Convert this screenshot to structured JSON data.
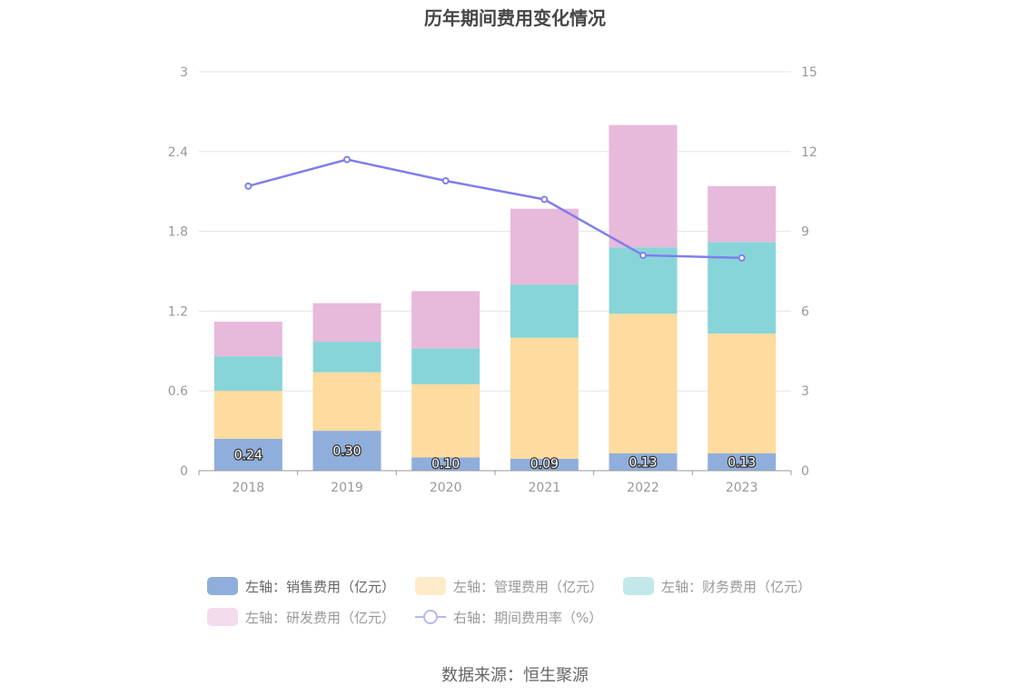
{
  "title": "历年期间费用变化情况",
  "source": "数据来源：恒生聚源",
  "colors": {
    "sales": "#8faedc",
    "admin": "#fedb9e",
    "finance": "#88d5d9",
    "rd": "#e7b9da",
    "rate": "#7f7fea",
    "grid": "#e3e3f1",
    "axis": "#999999"
  },
  "chart_data": {
    "type": "bar",
    "categories": [
      "2018",
      "2019",
      "2020",
      "2021",
      "2022",
      "2023"
    ],
    "stacked": true,
    "left_axis": {
      "ticks": [
        "0",
        "0.6",
        "1.2",
        "1.8",
        "2.4",
        "3"
      ],
      "ylim": [
        0,
        3
      ]
    },
    "right_axis": {
      "ticks": [
        "0",
        "3",
        "6",
        "9",
        "12",
        "15"
      ],
      "ylim": [
        0,
        15
      ]
    },
    "series": [
      {
        "name": "左轴：销售费用（亿元）",
        "type": "bar",
        "axis": "left",
        "color": "#8faedc",
        "values": [
          0.24,
          0.3,
          0.1,
          0.09,
          0.13,
          0.13
        ],
        "labels": [
          "0.24",
          "0.30",
          "0.10",
          "0.09",
          "0.13",
          "0.13"
        ]
      },
      {
        "name": "左轴：管理费用（亿元）",
        "type": "bar",
        "axis": "left",
        "color": "#fedb9e",
        "values": [
          0.36,
          0.44,
          0.55,
          0.91,
          1.05,
          0.9
        ]
      },
      {
        "name": "左轴：财务费用（亿元）",
        "type": "bar",
        "axis": "left",
        "color": "#88d5d9",
        "values": [
          0.26,
          0.23,
          0.27,
          0.4,
          0.5,
          0.69
        ]
      },
      {
        "name": "左轴：研发费用（亿元）",
        "type": "bar",
        "axis": "left",
        "color": "#e7b9da",
        "values": [
          0.26,
          0.29,
          0.43,
          0.57,
          0.92,
          0.42
        ]
      },
      {
        "name": "右轴：期间费用率（%）",
        "type": "line",
        "axis": "right",
        "color": "#7f7fea",
        "values": [
          10.7,
          11.7,
          10.9,
          10.2,
          8.1,
          8.0
        ]
      }
    ],
    "legend": "bottom",
    "grid": true
  }
}
